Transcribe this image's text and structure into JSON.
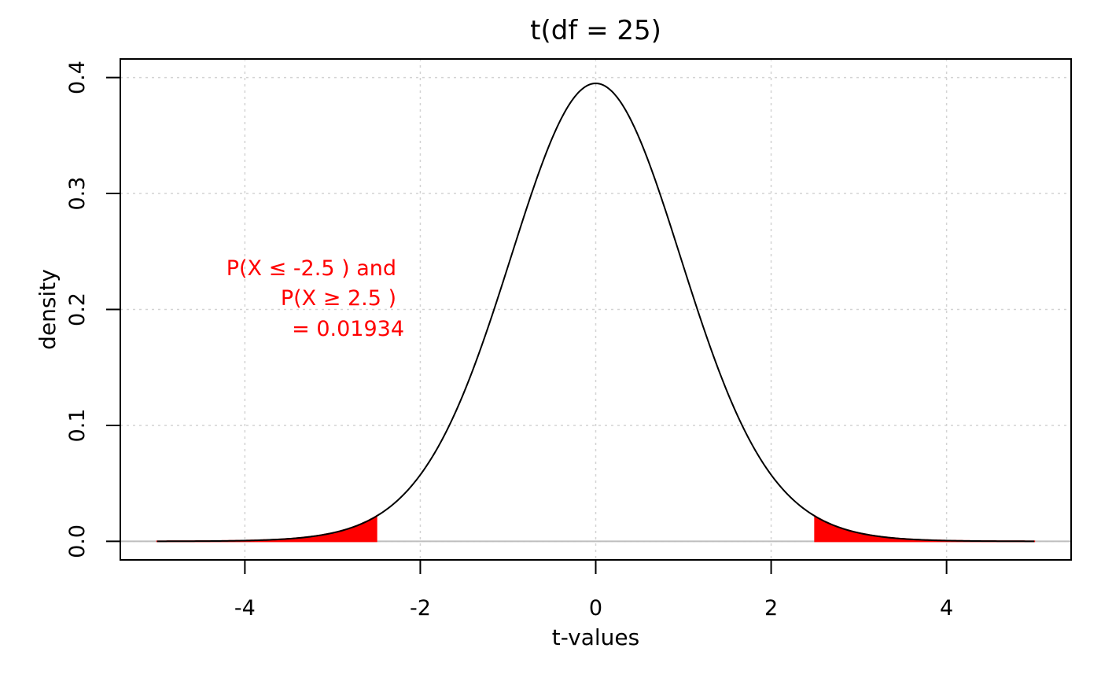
{
  "chart_data": {
    "type": "area",
    "title": "t(df = 25)",
    "xlabel": "t-values",
    "ylabel": "density",
    "df": 25,
    "xlim": [
      -5,
      5
    ],
    "ylim": [
      0,
      0.4
    ],
    "x_ticks": [
      "-4",
      "-2",
      "0",
      "2",
      "4"
    ],
    "y_ticks": [
      "0.0",
      "0.1",
      "0.2",
      "0.3",
      "0.4"
    ],
    "grid": true,
    "series": [
      {
        "color": "#000000",
        "x": [
          -5,
          -4.5,
          -4,
          -3.5,
          -3,
          -2.5,
          -2,
          -1.5,
          -1,
          -0.5,
          0,
          0.5,
          1,
          1.5,
          2,
          2.5,
          3,
          3.5,
          4,
          4.5,
          5
        ],
        "values": [
          0.0002,
          0.0004,
          0.0009,
          0.0023,
          0.0067,
          0.0213,
          0.0575,
          0.1286,
          0.2358,
          0.3448,
          0.394,
          0.3448,
          0.2358,
          0.1286,
          0.0575,
          0.0213,
          0.0067,
          0.0023,
          0.0009,
          0.0004,
          0.0002
        ]
      }
    ],
    "shaded_regions": [
      {
        "from": -5,
        "to": -2.5,
        "color": "#ff0000"
      },
      {
        "from": 2.5,
        "to": 5,
        "color": "#ff0000"
      }
    ],
    "annotation": {
      "lines": [
        "P(X ≤ -2.5 ) and",
        "P(X ≥ 2.5 )",
        "= 0.01934"
      ],
      "color": "#ff0000"
    }
  }
}
